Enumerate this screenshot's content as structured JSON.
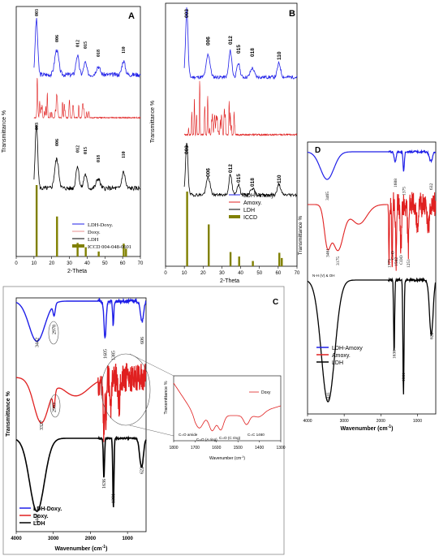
{
  "chart_data": [
    {
      "type": "line",
      "panel": "A",
      "xlabel": "2-Theta",
      "ylabel": "Transmittance %",
      "xlim": [
        0,
        70
      ],
      "x_ticks": [
        "0",
        "10",
        "20",
        "30",
        "40",
        "50",
        "60",
        "70"
      ],
      "series_names": [
        "LDH-Doxy.",
        "Doxy.",
        "LDH",
        "ICCD 004-048-0601"
      ],
      "peak_labels": [
        "003",
        "006",
        "012",
        "015",
        "018",
        "110"
      ],
      "peaks_top": [
        {
          "label": "003",
          "x": 11.4
        },
        {
          "label": "006",
          "x": 22.8
        },
        {
          "label": "012",
          "x": 34.5
        },
        {
          "label": "015",
          "x": 38.9
        },
        {
          "label": "018",
          "x": 46.2
        },
        {
          "label": "110",
          "x": 60.5
        }
      ],
      "peaks_bottom": [
        {
          "label": "003",
          "x": 11.4
        },
        {
          "label": "006",
          "x": 22.8
        },
        {
          "label": "012",
          "x": 34.5
        },
        {
          "label": "015",
          "x": 38.9
        },
        {
          "label": "018",
          "x": 46.2
        },
        {
          "label": "110",
          "x": 60.5
        }
      ],
      "ref_bars": [
        {
          "x": 11.5,
          "h": 1.0
        },
        {
          "x": 23.0,
          "h": 0.56
        },
        {
          "x": 34.6,
          "h": 0.19
        },
        {
          "x": 39.2,
          "h": 0.13
        },
        {
          "x": 46.5,
          "h": 0.07
        },
        {
          "x": 60.6,
          "h": 0.18
        },
        {
          "x": 61.9,
          "h": 0.11
        }
      ],
      "legend_position": "bottom-right"
    },
    {
      "type": "line",
      "panel": "B",
      "xlabel": "2-Theta",
      "ylabel": "Transmittance %",
      "xlim": [
        0,
        70
      ],
      "x_ticks": [
        "0",
        "10",
        "20",
        "30",
        "40",
        "50",
        "60",
        "70"
      ],
      "series_names": [
        "LDH-Amoxy.",
        "Amoxy.",
        "LDH",
        "ICCD"
      ],
      "peak_labels": [
        "003",
        "006",
        "012",
        "015",
        "018",
        "110"
      ],
      "peaks_top": [
        {
          "label": "003",
          "x": 11.3
        },
        {
          "label": "006",
          "x": 22.7
        },
        {
          "label": "012",
          "x": 34.5
        },
        {
          "label": "015",
          "x": 38.8
        },
        {
          "label": "018",
          "x": 46.2
        },
        {
          "label": "110",
          "x": 60.4
        }
      ],
      "peaks_bottom": [
        {
          "label": "003",
          "x": 11.3
        },
        {
          "label": "006",
          "x": 22.7
        },
        {
          "label": "012",
          "x": 34.5
        },
        {
          "label": "015",
          "x": 38.8
        },
        {
          "label": "018",
          "x": 46.2
        },
        {
          "label": "110",
          "x": 60.4
        }
      ],
      "ref_bars": [
        {
          "x": 11.5,
          "h": 1.0
        },
        {
          "x": 23.0,
          "h": 0.56
        },
        {
          "x": 34.6,
          "h": 0.19
        },
        {
          "x": 39.2,
          "h": 0.13
        },
        {
          "x": 46.5,
          "h": 0.07
        },
        {
          "x": 60.6,
          "h": 0.18
        },
        {
          "x": 61.9,
          "h": 0.11
        }
      ],
      "legend_position": "bottom-right"
    },
    {
      "type": "line",
      "panel": "C",
      "xlabel": "Wavenumber (cm",
      "xlabel_sup": "-1",
      "xlabel_end": ")",
      "ylabel": "Transmittance %",
      "xlim": [
        4000,
        500
      ],
      "x_ticks": [
        "4000",
        "3000",
        "2000",
        "1000"
      ],
      "series_names": [
        "LDH-Doxy.",
        "Doxy.",
        "LDH"
      ],
      "band_labels": {
        "ldh_doxy": [
          {
            "label": "3442",
            "x": 3442
          },
          {
            "label": "2978",
            "x": 2978
          },
          {
            "label": "1605",
            "x": 1605
          },
          {
            "label": "1385",
            "x": 1385
          },
          {
            "label": "606",
            "x": 606
          }
        ],
        "doxy": [
          {
            "label": "3327",
            "x": 3327
          },
          {
            "label": "2983",
            "x": 2983
          }
        ],
        "ldh": [
          {
            "label": "3441",
            "x": 3441
          },
          {
            "label": "1636",
            "x": 1636
          },
          {
            "label": "1381",
            "x": 1381
          },
          {
            "label": "622",
            "x": 622
          }
        ]
      },
      "legend_position": "bottom-left",
      "inset": {
        "xlabel": "Wavenumber (cm",
        "xlabel_sup": "-1",
        "xlabel_end": ")",
        "ylabel": "Transmittance %",
        "xlim": [
          1800,
          1300
        ],
        "x_ticks": [
          "1800",
          "1700",
          "1600",
          "1500",
          "1400",
          "1300"
        ],
        "series_name": "Doxy",
        "annotations": [
          "C=O amide",
          "C=O (A ring)",
          "C=O (C ring)",
          "C=C 1460"
        ]
      }
    },
    {
      "type": "line",
      "panel": "D",
      "xlabel": "Wavenumber (cm",
      "xlabel_sup": "-1",
      "xlabel_end": ")",
      "ylabel": "Transmittance %",
      "xlim": [
        4000,
        500
      ],
      "x_ticks": [
        "4000",
        "3000",
        "2000",
        "1000"
      ],
      "series_names": [
        "LDH-Amoxy",
        "Amoxy.",
        "LDH"
      ],
      "band_labels": {
        "ldh_amoxy": [
          {
            "label": "3465",
            "x": 3465
          },
          {
            "label": "1608",
            "x": 1608
          },
          {
            "label": "1375",
            "x": 1375
          },
          {
            "label": "632",
            "x": 632
          }
        ],
        "amoxy": [
          {
            "label": "3461",
            "x": 3461
          },
          {
            "label": "3175",
            "x": 3175
          },
          {
            "label": "1775",
            "x": 1775
          },
          {
            "label": "C=O",
            "x": 1690
          },
          {
            "label": "1582",
            "x": 1582
          },
          {
            "label": "COO",
            "x": 1450
          },
          {
            "label": "1251",
            "x": 1251
          }
        ],
        "ldh": [
          {
            "label": "3441",
            "x": 3441
          },
          {
            "label": "1636",
            "x": 1636
          },
          {
            "label": "1381",
            "x": 1381
          },
          {
            "label": "622",
            "x": 622
          }
        ]
      },
      "nh_label": "N-H (V) & OH",
      "legend_position": "bottom-left"
    }
  ],
  "colors": {
    "blue": "#1f1fe8",
    "red": "#e02020",
    "black": "#000000",
    "olive": "#808000",
    "pink": "#e89090"
  }
}
